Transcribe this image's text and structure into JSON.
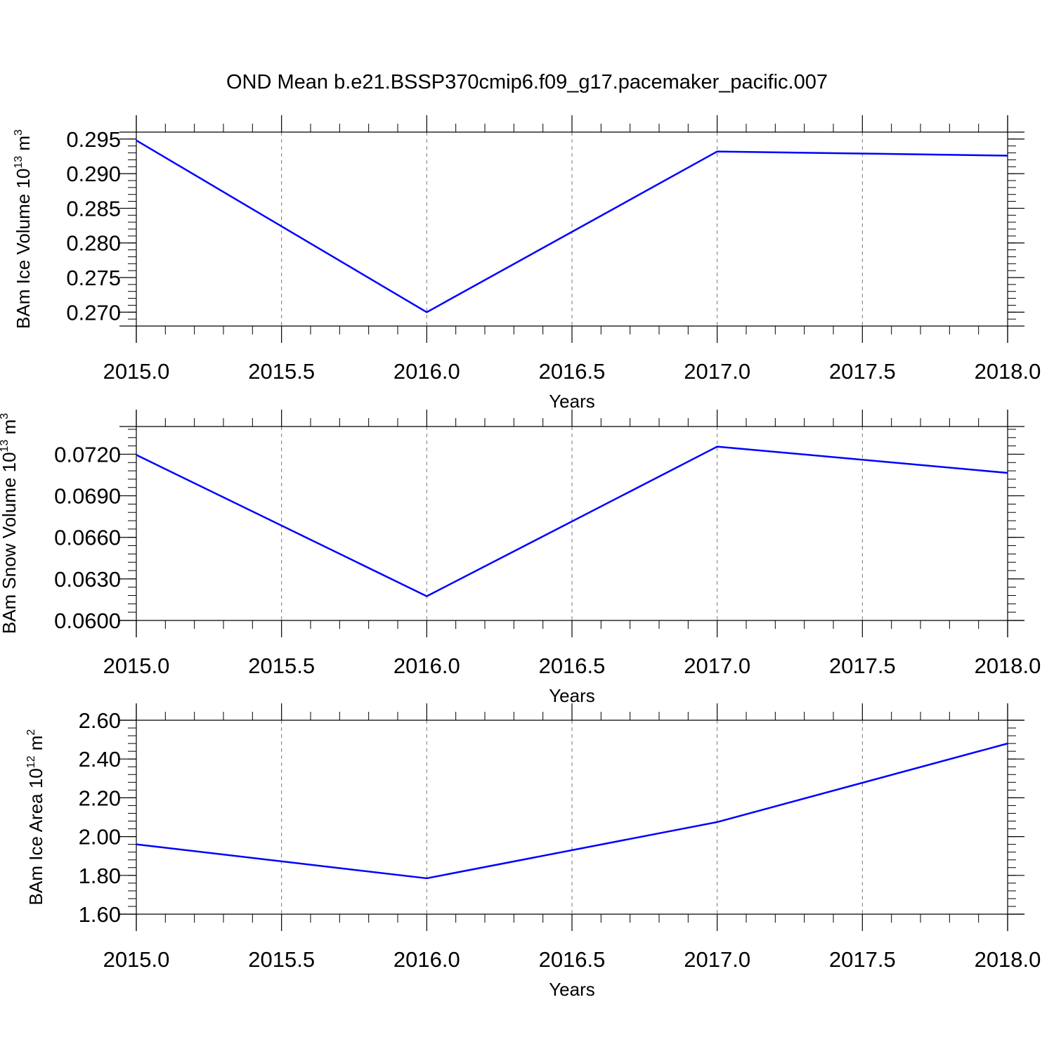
{
  "title": "OND Mean b.e21.BSSP370cmip6.f09_g17.pacemaker_pacific.007",
  "colors": {
    "line": "#0000ff",
    "axis": "#000000",
    "grid": "#777777"
  },
  "chart_data": [
    {
      "type": "line",
      "xlabel": "Years",
      "ylabel": {
        "prefix": "BAm Ice Volume 10",
        "exponent": "13",
        "unit": "m",
        "unit_exponent": "3"
      },
      "xlim": [
        2015.0,
        2018.0
      ],
      "ylim": [
        0.268,
        0.296
      ],
      "x_ticks": [
        "2015.0",
        "2015.5",
        "2016.0",
        "2016.5",
        "2017.0",
        "2017.5",
        "2018.0"
      ],
      "y_ticks": [
        "0.270",
        "0.275",
        "0.280",
        "0.285",
        "0.290",
        "0.295"
      ],
      "y_minor_step": 0.001,
      "grid": "vertical dashed",
      "series": [
        {
          "x": [
            2015.0,
            2016.0,
            2017.0,
            2018.0
          ],
          "values": [
            0.2948,
            0.27,
            0.2932,
            0.2926
          ]
        }
      ]
    },
    {
      "type": "line",
      "xlabel": "Years",
      "ylabel": {
        "prefix": "BAm Snow Volume 10",
        "exponent": "13",
        "unit": "m",
        "unit_exponent": "3"
      },
      "xlim": [
        2015.0,
        2018.0
      ],
      "ylim": [
        0.06,
        0.074
      ],
      "x_ticks": [
        "2015.0",
        "2015.5",
        "2016.0",
        "2016.5",
        "2017.0",
        "2017.5",
        "2018.0"
      ],
      "y_ticks": [
        "0.0600",
        "0.0630",
        "0.0660",
        "0.0690",
        "0.0720"
      ],
      "y_minor_step": 0.0006,
      "grid": "vertical dashed",
      "series": [
        {
          "x": [
            2015.0,
            2016.0,
            2017.0,
            2018.0
          ],
          "values": [
            0.07195,
            0.06175,
            0.07255,
            0.07065
          ]
        }
      ]
    },
    {
      "type": "line",
      "xlabel": "Years",
      "ylabel": {
        "prefix": "BAm Ice Area 10",
        "exponent": "12",
        "unit": "m",
        "unit_exponent": "2"
      },
      "xlim": [
        2015.0,
        2018.0
      ],
      "ylim": [
        1.6,
        2.6
      ],
      "x_ticks": [
        "2015.0",
        "2015.5",
        "2016.0",
        "2016.5",
        "2017.0",
        "2017.5",
        "2018.0"
      ],
      "y_ticks": [
        "1.60",
        "1.80",
        "2.00",
        "2.20",
        "2.40",
        "2.60"
      ],
      "y_minor_step": 0.04,
      "grid": "vertical dashed",
      "series": [
        {
          "x": [
            2015.0,
            2016.0,
            2017.0,
            2018.0
          ],
          "values": [
            1.96,
            1.785,
            2.075,
            2.48
          ]
        }
      ]
    }
  ]
}
